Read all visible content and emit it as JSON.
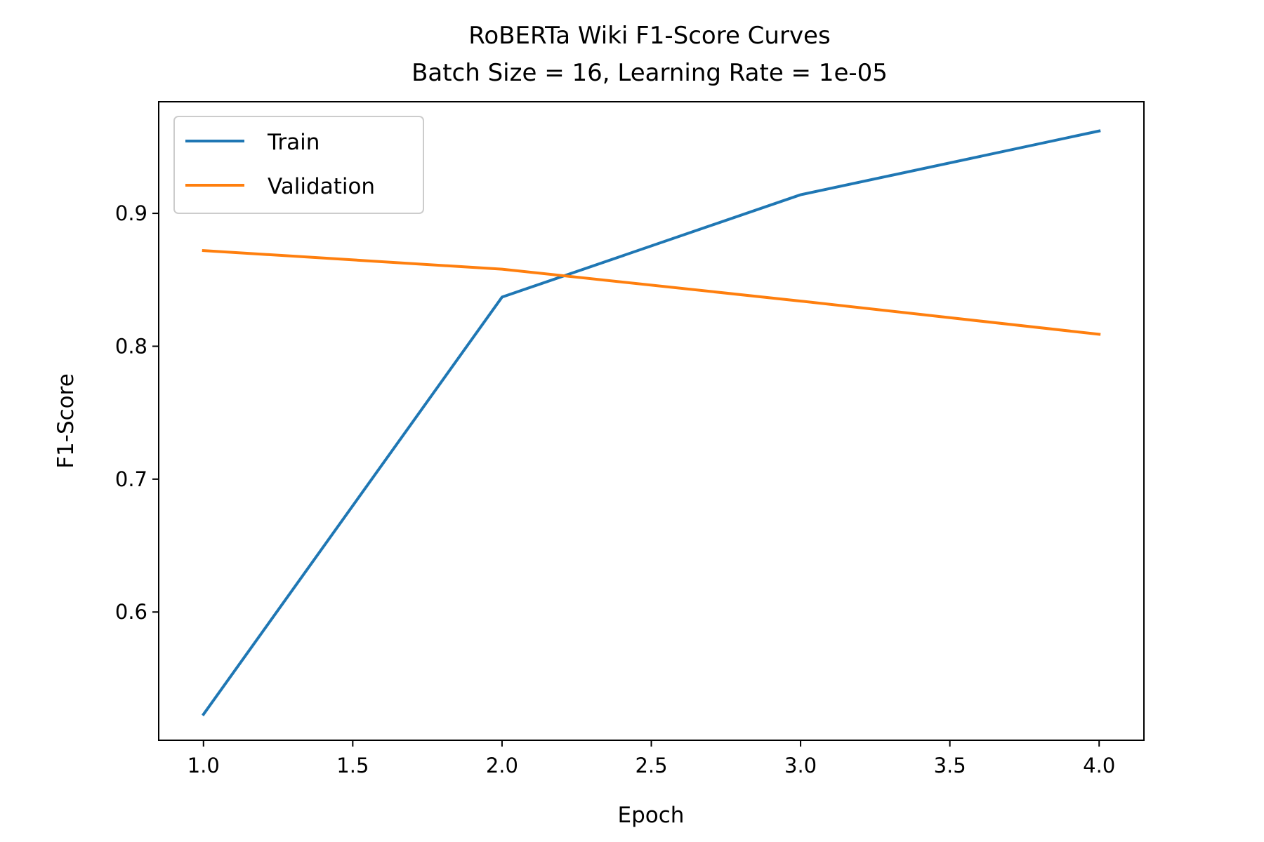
{
  "chart_data": {
    "type": "line",
    "title": "RoBERTa Wiki F1-Score Curves",
    "subtitle": "Batch Size = 16, Learning Rate = 1e-05",
    "xlabel": "Epoch",
    "ylabel": "F1-Score",
    "xlim": [
      0.85,
      4.15
    ],
    "ylim": [
      0.5035,
      0.984
    ],
    "xticks": [
      1.0,
      1.5,
      2.0,
      2.5,
      3.0,
      3.5,
      4.0
    ],
    "xtick_labels": [
      "1.0",
      "1.5",
      "2.0",
      "2.5",
      "3.0",
      "3.5",
      "4.0"
    ],
    "yticks": [
      0.6,
      0.7,
      0.8,
      0.9
    ],
    "ytick_labels": [
      "0.6",
      "0.7",
      "0.8",
      "0.9"
    ],
    "grid": false,
    "legend_position": "top-left",
    "x": [
      1,
      2,
      3,
      4
    ],
    "series": [
      {
        "name": "Train",
        "color": "#1f77b4",
        "values": [
          0.523,
          0.837,
          0.914,
          0.962
        ]
      },
      {
        "name": "Validation",
        "color": "#ff7f0e",
        "values": [
          0.872,
          0.858,
          0.834,
          0.809
        ]
      }
    ]
  }
}
